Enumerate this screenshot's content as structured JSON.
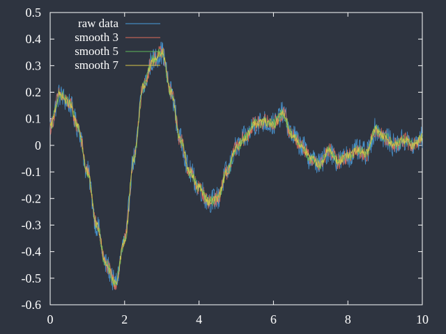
{
  "chart_data": {
    "type": "line",
    "title": "",
    "xlabel": "",
    "ylabel": "",
    "xlim": [
      0,
      10
    ],
    "ylim": [
      -0.6,
      0.5
    ],
    "xticks": [
      "0",
      "2",
      "4",
      "6",
      "8",
      "10"
    ],
    "yticks": [
      "0.5",
      "0.4",
      "0.3",
      "0.2",
      "0.1",
      "0",
      "-0.1",
      "-0.2",
      "-0.3",
      "-0.4",
      "-0.5",
      "-0.6"
    ],
    "grid": false,
    "legend_position": "top-left",
    "background_color": "#2e3440",
    "series": [
      {
        "name": "raw data",
        "color": "#4a9fe0",
        "x": [
          0,
          0.25,
          0.5,
          0.75,
          1.0,
          1.25,
          1.5,
          1.75,
          2.0,
          2.25,
          2.5,
          2.75,
          3.0,
          3.25,
          3.5,
          3.75,
          4.0,
          4.25,
          4.5,
          4.75,
          5.0,
          5.25,
          5.5,
          5.75,
          6.0,
          6.25,
          6.5,
          6.75,
          7.0,
          7.25,
          7.5,
          7.75,
          8.0,
          8.25,
          8.5,
          8.75,
          9.0,
          9.25,
          9.5,
          9.75,
          10.0
        ],
        "values": [
          0.07,
          0.19,
          0.16,
          0.07,
          -0.1,
          -0.3,
          -0.45,
          -0.52,
          -0.36,
          -0.05,
          0.22,
          0.32,
          0.35,
          0.2,
          0.02,
          -0.1,
          -0.16,
          -0.21,
          -0.2,
          -0.1,
          -0.01,
          0.03,
          0.08,
          0.09,
          0.08,
          0.12,
          0.04,
          0.0,
          -0.05,
          -0.07,
          -0.02,
          -0.06,
          -0.04,
          -0.02,
          -0.03,
          0.06,
          0.03,
          0.0,
          0.02,
          0.0,
          0.03
        ],
        "noise": 0.045
      },
      {
        "name": "smooth 3",
        "color": "#e06c5a",
        "x": [
          0,
          0.25,
          0.5,
          0.75,
          1.0,
          1.25,
          1.5,
          1.75,
          2.0,
          2.25,
          2.5,
          2.75,
          3.0,
          3.25,
          3.5,
          3.75,
          4.0,
          4.25,
          4.5,
          4.75,
          5.0,
          5.25,
          5.5,
          5.75,
          6.0,
          6.25,
          6.5,
          6.75,
          7.0,
          7.25,
          7.5,
          7.75,
          8.0,
          8.25,
          8.5,
          8.75,
          9.0,
          9.25,
          9.5,
          9.75,
          10.0
        ],
        "values": [
          0.07,
          0.19,
          0.16,
          0.07,
          -0.1,
          -0.3,
          -0.45,
          -0.52,
          -0.36,
          -0.05,
          0.22,
          0.32,
          0.35,
          0.2,
          0.02,
          -0.1,
          -0.16,
          -0.21,
          -0.2,
          -0.1,
          -0.01,
          0.03,
          0.08,
          0.09,
          0.08,
          0.12,
          0.04,
          0.0,
          -0.05,
          -0.07,
          -0.02,
          -0.06,
          -0.04,
          -0.02,
          -0.03,
          0.06,
          0.03,
          0.0,
          0.02,
          0.0,
          0.03
        ],
        "noise": 0.03
      },
      {
        "name": "smooth 5",
        "color": "#5fb85a",
        "x": [
          0,
          0.25,
          0.5,
          0.75,
          1.0,
          1.25,
          1.5,
          1.75,
          2.0,
          2.25,
          2.5,
          2.75,
          3.0,
          3.25,
          3.5,
          3.75,
          4.0,
          4.25,
          4.5,
          4.75,
          5.0,
          5.25,
          5.5,
          5.75,
          6.0,
          6.25,
          6.5,
          6.75,
          7.0,
          7.25,
          7.5,
          7.75,
          8.0,
          8.25,
          8.5,
          8.75,
          9.0,
          9.25,
          9.5,
          9.75,
          10.0
        ],
        "values": [
          0.07,
          0.19,
          0.16,
          0.07,
          -0.1,
          -0.3,
          -0.45,
          -0.52,
          -0.36,
          -0.05,
          0.22,
          0.32,
          0.35,
          0.2,
          0.02,
          -0.1,
          -0.16,
          -0.21,
          -0.2,
          -0.1,
          -0.01,
          0.03,
          0.08,
          0.09,
          0.08,
          0.12,
          0.04,
          0.0,
          -0.05,
          -0.07,
          -0.02,
          -0.06,
          -0.04,
          -0.02,
          -0.03,
          0.06,
          0.03,
          0.0,
          0.02,
          0.0,
          0.03
        ],
        "noise": 0.022
      },
      {
        "name": "smooth 7",
        "color": "#d9c64a",
        "x": [
          0,
          0.25,
          0.5,
          0.75,
          1.0,
          1.25,
          1.5,
          1.75,
          2.0,
          2.25,
          2.5,
          2.75,
          3.0,
          3.25,
          3.5,
          3.75,
          4.0,
          4.25,
          4.5,
          4.75,
          5.0,
          5.25,
          5.5,
          5.75,
          6.0,
          6.25,
          6.5,
          6.75,
          7.0,
          7.25,
          7.5,
          7.75,
          8.0,
          8.25,
          8.5,
          8.75,
          9.0,
          9.25,
          9.5,
          9.75,
          10.0
        ],
        "values": [
          0.07,
          0.19,
          0.16,
          0.07,
          -0.1,
          -0.3,
          -0.45,
          -0.52,
          -0.36,
          -0.05,
          0.22,
          0.32,
          0.35,
          0.2,
          0.02,
          -0.1,
          -0.16,
          -0.21,
          -0.2,
          -0.1,
          -0.01,
          0.03,
          0.08,
          0.09,
          0.08,
          0.12,
          0.04,
          0.0,
          -0.05,
          -0.07,
          -0.02,
          -0.06,
          -0.04,
          -0.02,
          -0.03,
          0.06,
          0.03,
          0.0,
          0.02,
          0.0,
          0.03
        ],
        "noise": 0.016
      }
    ]
  }
}
